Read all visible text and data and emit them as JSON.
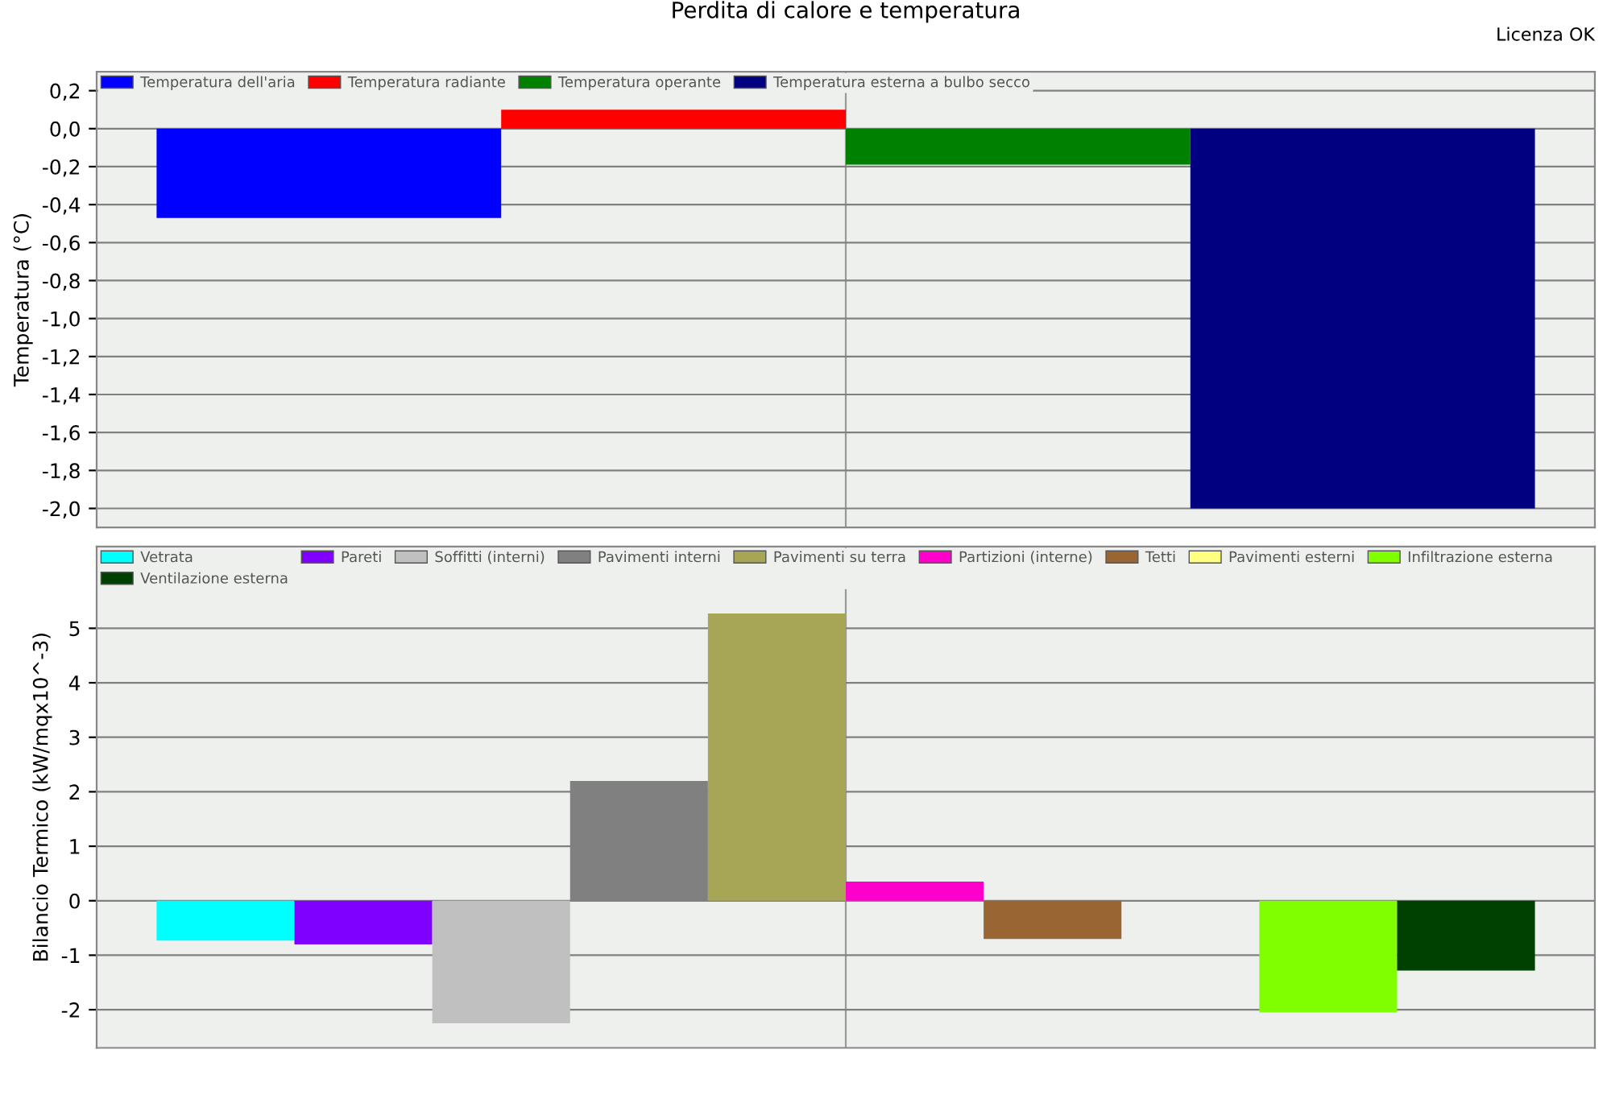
{
  "chart_data": [
    {
      "type": "bar",
      "title": "Perdita di calore e temperatura",
      "annotations": [
        "Licenza OK"
      ],
      "ylabel": "Temperatura (°C)",
      "categories": [
        null
      ],
      "series": [
        {
          "name": "Temperatura dell'aria",
          "color": "#0000ff",
          "values": [
            -0.47
          ]
        },
        {
          "name": "Temperatura radiante",
          "color": "#ff0000",
          "values": [
            0.1
          ]
        },
        {
          "name": "Temperatura operante",
          "color": "#008000",
          "values": [
            -0.19
          ]
        },
        {
          "name": "Temperatura esterna a bulbo secco",
          "color": "#000080",
          "values": [
            -2.0
          ]
        }
      ],
      "ylim": [
        -2.1,
        0.3
      ],
      "yticks": [
        {
          "value": 0.2,
          "label": "0,2"
        },
        {
          "value": 0,
          "label": "0,0"
        },
        {
          "value": -0.2,
          "label": "-0,2"
        },
        {
          "value": -0.4,
          "label": "-0,4"
        },
        {
          "value": -0.6,
          "label": "-0,6"
        },
        {
          "value": -0.8,
          "label": "-0,8"
        },
        {
          "value": -1.0,
          "label": "-1,0"
        },
        {
          "value": -1.2,
          "label": "-1,2"
        },
        {
          "value": -1.4,
          "label": "-1,4"
        },
        {
          "value": -1.6,
          "label": "-1,6"
        },
        {
          "value": -1.8,
          "label": "-1,8"
        },
        {
          "value": -2.0,
          "label": "-2,0"
        }
      ],
      "grid": "y",
      "legend": "top",
      "tick_labels": "y"
    },
    {
      "type": "bar",
      "ylabel": "Bilancio Termico (kW/mqx10^-3)",
      "categories": [
        null
      ],
      "series": [
        {
          "name": "Vetrata",
          "color": "#00ffff",
          "values": [
            -0.73
          ]
        },
        {
          "name": "Pareti",
          "color": "#8000ff",
          "values": [
            -0.8
          ]
        },
        {
          "name": "Soffitti (interni)",
          "color": "#c0c0c0",
          "values": [
            -2.25
          ]
        },
        {
          "name": "Pavimenti interni",
          "color": "#808080",
          "values": [
            2.2
          ]
        },
        {
          "name": "Pavimenti su terra",
          "color": "#a6a655",
          "values": [
            5.27
          ]
        },
        {
          "name": "Partizioni (interne)",
          "color": "#ff00cc",
          "values": [
            0.35
          ]
        },
        {
          "name": "Tetti",
          "color": "#996633",
          "values": [
            -0.7
          ]
        },
        {
          "name": "Pavimenti esterni",
          "color": "#ffff80",
          "values": [
            0
          ]
        },
        {
          "name": "Infiltrazione esterna",
          "color": "#80ff00",
          "values": [
            -2.05
          ]
        },
        {
          "name": "Ventilazione esterna",
          "color": "#004000",
          "values": [
            -1.28
          ]
        }
      ],
      "ylim": [
        -2.7,
        6.5
      ],
      "yticks": [
        -2,
        -1,
        0,
        1,
        2,
        3,
        4,
        5
      ],
      "grid": "y",
      "legend": "top",
      "tick_labels": "y"
    }
  ]
}
